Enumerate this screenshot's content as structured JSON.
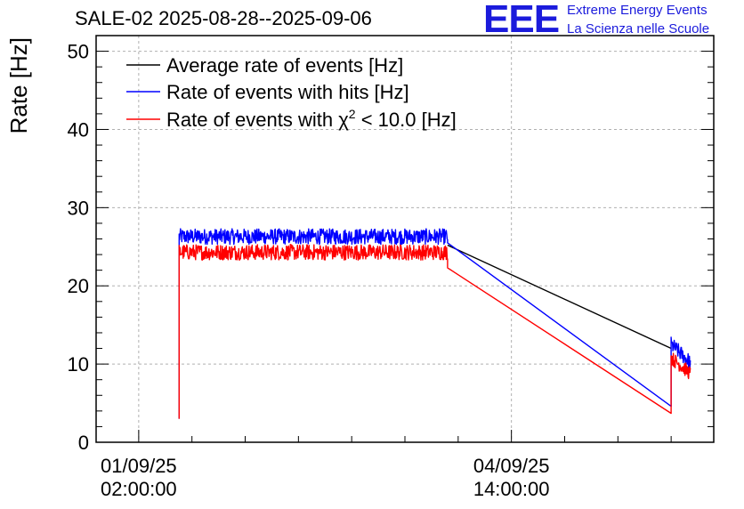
{
  "header": {
    "title": "SALE-02 2025-08-28--2025-09-06",
    "logo_text": "EEE",
    "logo_line1": "Extreme Energy Events",
    "logo_line2": "La Scienza nelle Scuole"
  },
  "colors": {
    "black": "#000000",
    "blue": "#0000ff",
    "red": "#ff0000",
    "brand": "#1b1bdc",
    "grid": "#b0b0b0"
  },
  "chart_data": {
    "type": "line",
    "title": "SALE-02 2025-08-28--2025-09-06",
    "xlabel": "",
    "ylabel": "Rate [Hz]",
    "xlim_hours": [
      -0.4,
      5.4
    ],
    "x_unit": "days since 01/09/25 02:00:00",
    "ylim": [
      0,
      52
    ],
    "y_ticks": [
      0,
      10,
      20,
      30,
      40,
      50
    ],
    "x_ticks": [
      {
        "value": 0.0,
        "line1": "01/09/25",
        "line2": "02:00:00"
      },
      {
        "value": 3.5,
        "line1": "04/09/25",
        "line2": "14:00:00"
      }
    ],
    "grid": true,
    "legend_position": "top-left",
    "series": [
      {
        "name": "Average rate of events [Hz]",
        "color": "#000000",
        "points": [
          [
            2.9,
            25.2
          ],
          [
            5.0,
            12.0
          ]
        ]
      },
      {
        "name": "Rate of events with hits [Hz]",
        "color": "#0000ff",
        "segments": [
          {
            "type": "noise",
            "x_start": 0.38,
            "x_end": 2.9,
            "mean": 26.3,
            "amp": 1.0,
            "start_value": 3.0
          },
          {
            "type": "line",
            "points": [
              [
                2.9,
                25.5
              ],
              [
                5.0,
                4.6
              ]
            ]
          },
          {
            "type": "noise",
            "x_start": 5.0,
            "x_end": 5.18,
            "mean_start": 12.5,
            "mean_end": 10.2,
            "amp": 1.0
          }
        ]
      },
      {
        "name": "Rate of events with χ² < 10.0 [Hz]",
        "color": "#ff0000",
        "segments": [
          {
            "type": "noise",
            "x_start": 0.38,
            "x_end": 2.9,
            "mean": 24.3,
            "amp": 1.0,
            "start_value": 3.0
          },
          {
            "type": "line",
            "points": [
              [
                2.9,
                22.3
              ],
              [
                5.0,
                3.7
              ]
            ]
          },
          {
            "type": "noise",
            "x_start": 5.0,
            "x_end": 5.18,
            "mean_start": 10.8,
            "mean_end": 8.8,
            "amp": 0.9
          }
        ]
      }
    ],
    "legend": [
      {
        "label_main": "Rate of events with ",
        "label_sym": "χ",
        "label_sup": "2",
        "label_tail": " < 10.0 [Hz]"
      }
    ]
  }
}
